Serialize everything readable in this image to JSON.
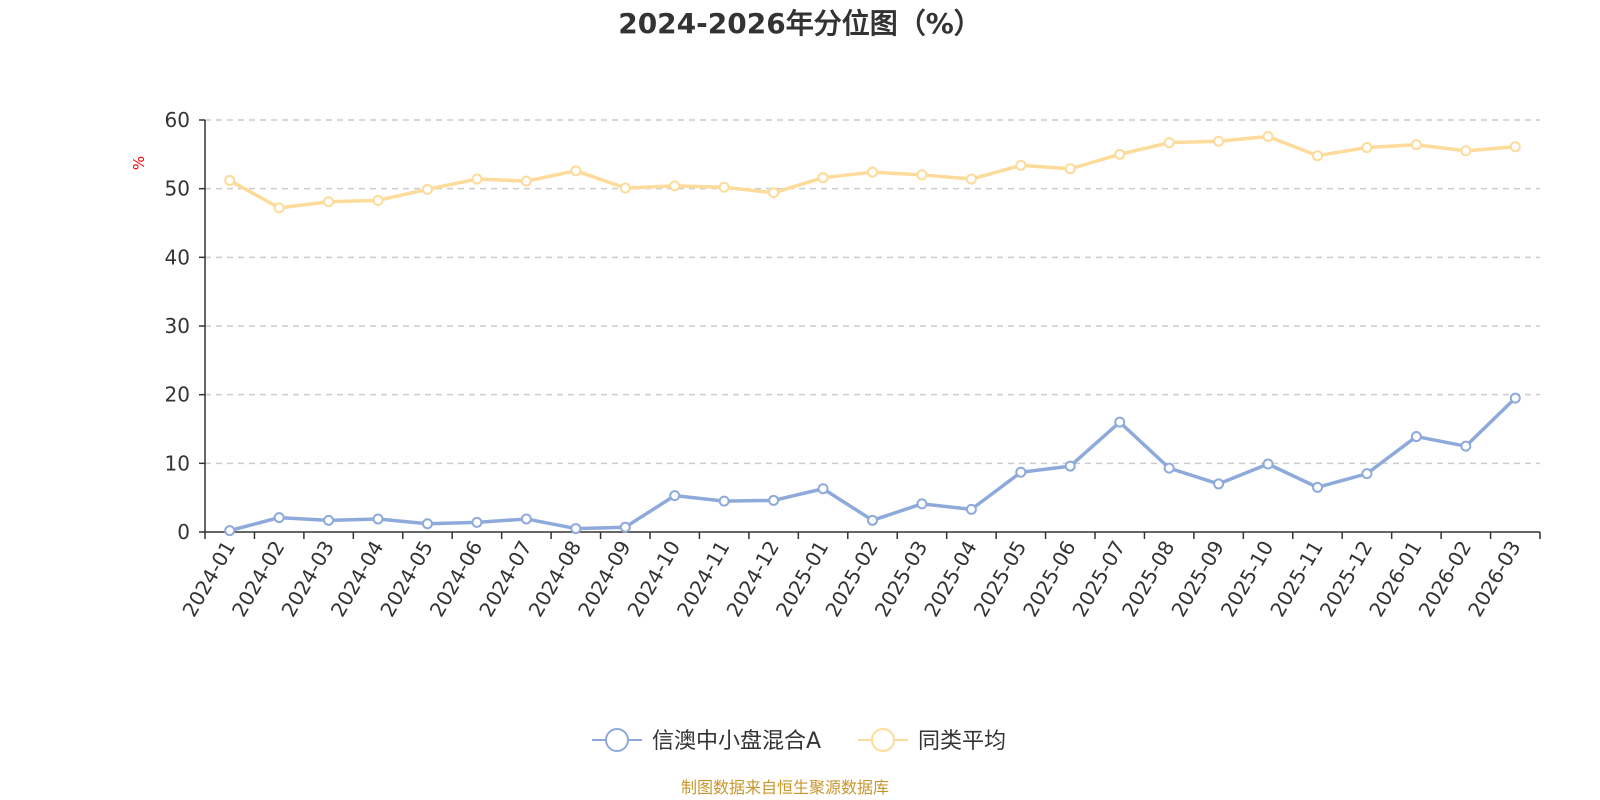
{
  "chart_data": {
    "type": "line",
    "title": "2024-2026年分位图（%）",
    "ylabel": "%",
    "ylim": [
      0,
      60
    ],
    "yticks": [
      0,
      10,
      20,
      30,
      40,
      50,
      60
    ],
    "grid": true,
    "legend_position": "bottom",
    "categories": [
      "2024-01",
      "2024-02",
      "2024-03",
      "2024-04",
      "2024-05",
      "2024-06",
      "2024-07",
      "2024-08",
      "2024-09",
      "2024-10",
      "2024-11",
      "2024-12",
      "2025-01",
      "2025-02",
      "2025-03",
      "2025-04",
      "2025-05",
      "2025-06",
      "2025-07",
      "2025-08",
      "2025-09",
      "2025-10",
      "2025-11",
      "2025-12",
      "2026-01",
      "2026-02",
      "2026-03"
    ],
    "series": [
      {
        "name": "信澳中小盘混合A",
        "color": "#8eaadb",
        "values": [
          0.2,
          2.1,
          1.7,
          1.9,
          1.2,
          1.4,
          1.9,
          0.5,
          0.7,
          5.3,
          4.5,
          4.6,
          6.3,
          1.7,
          4.1,
          3.3,
          8.7,
          9.6,
          16.0,
          9.3,
          7.0,
          9.9,
          6.5,
          8.5,
          13.9,
          12.5,
          19.5
        ]
      },
      {
        "name": "同类平均",
        "color": "#fddb9a",
        "values": [
          51.2,
          47.2,
          48.1,
          48.3,
          49.9,
          51.4,
          51.1,
          52.6,
          50.1,
          50.4,
          50.2,
          49.4,
          51.6,
          52.4,
          52.0,
          51.4,
          53.4,
          52.9,
          55.0,
          56.7,
          56.9,
          57.6,
          54.8,
          56.0,
          56.4,
          55.5,
          56.1
        ]
      }
    ]
  },
  "source_note": "制图数据来自恒生聚源数据库"
}
